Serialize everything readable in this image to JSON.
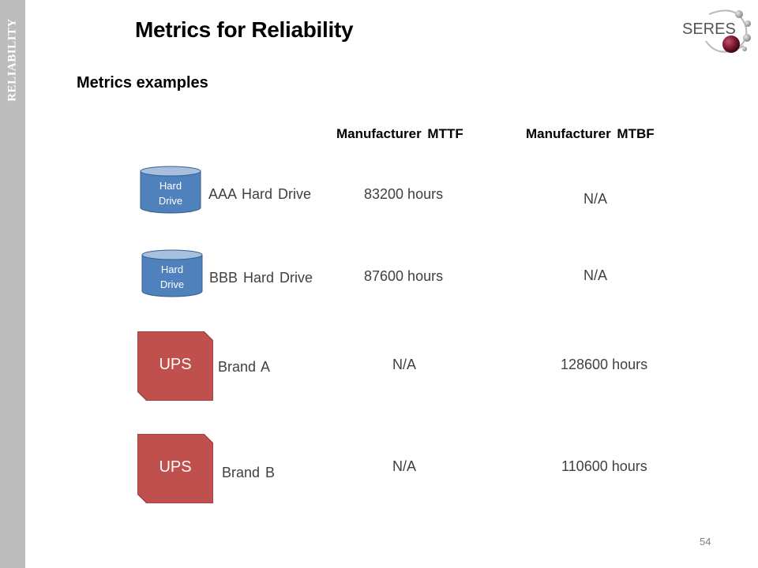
{
  "sidebar": {
    "label": "RELIABILITY"
  },
  "header": {
    "title": "Metrics for Reliability",
    "logo_text": "SERES"
  },
  "content": {
    "subtitle": "Metrics examples",
    "columns": {
      "mttf": "Manufacturer  MTTF",
      "mtbf": "Manufacturer  MTBF"
    },
    "rows": [
      {
        "icon_label_1": "Hard",
        "icon_label_2": "Drive",
        "label": "AAA Hard Drive",
        "mttf": "83200 hours",
        "mtbf": "N/A"
      },
      {
        "icon_label_1": "Hard",
        "icon_label_2": "Drive",
        "label": "BBB Hard Drive",
        "mttf": "87600 hours",
        "mtbf": "N/A"
      },
      {
        "icon_label": "UPS",
        "label": "Brand A",
        "mttf": "N/A",
        "mtbf": "128600 hours"
      },
      {
        "icon_label": "UPS",
        "label": "Brand B",
        "mttf": "N/A",
        "mtbf": "110600 hours"
      }
    ]
  },
  "footer": {
    "page_number": "54"
  },
  "colors": {
    "sidebar": "#bcbcbc",
    "cylinder": "#4f81bd",
    "ups": "#c0504d",
    "logo_sphere": "#7a1a2e"
  }
}
